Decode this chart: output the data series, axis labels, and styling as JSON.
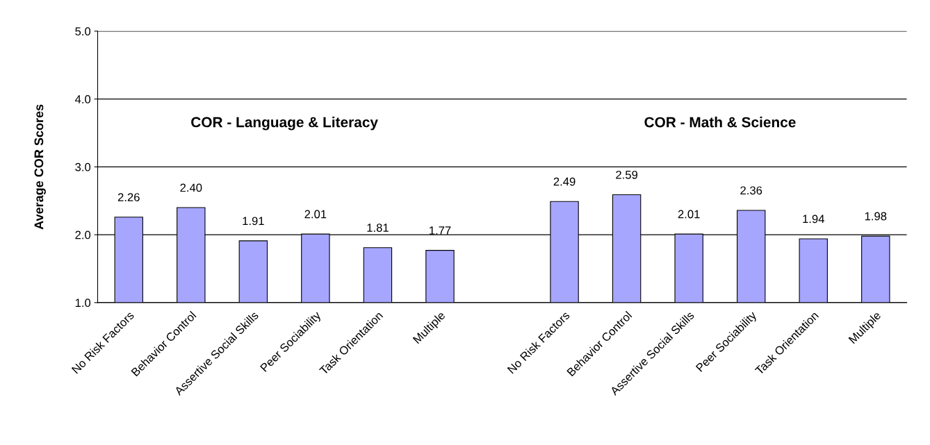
{
  "chart_data": {
    "type": "bar",
    "ylabel": "Average COR Scores",
    "categories": [
      "No Risk Factors",
      "Behavior Control",
      "Assertive Social Skills",
      "Peer Sociability",
      "Task Orientation",
      "Multiple",
      null,
      "No Risk Factors",
      "Behavior Control",
      "Assertive Social Skills",
      "Peer Sociability",
      "Task Orientation",
      "Multiple"
    ],
    "values": [
      2.26,
      2.4,
      1.91,
      2.01,
      1.81,
      1.77,
      null,
      2.49,
      2.59,
      2.01,
      2.36,
      1.94,
      1.98
    ],
    "color": "#a6a6ff",
    "ylim": [
      1,
      5
    ],
    "yticks": [
      {
        "value": 1,
        "label": "1.0"
      },
      {
        "value": 2,
        "label": "2.0"
      },
      {
        "value": 3,
        "label": "3.0"
      },
      {
        "value": 4,
        "label": "4.0"
      },
      {
        "value": 5,
        "label": "5.0"
      }
    ],
    "value_labels": [
      "2.26",
      "2.40",
      "1.91",
      "2.01",
      "1.81",
      "1.77",
      null,
      "2.49",
      "2.59",
      "2.01",
      "2.36",
      "1.94",
      "1.98"
    ],
    "grid": "y",
    "annotations": [
      "COR - Language & Literacy",
      "COR - Math & Science"
    ]
  }
}
